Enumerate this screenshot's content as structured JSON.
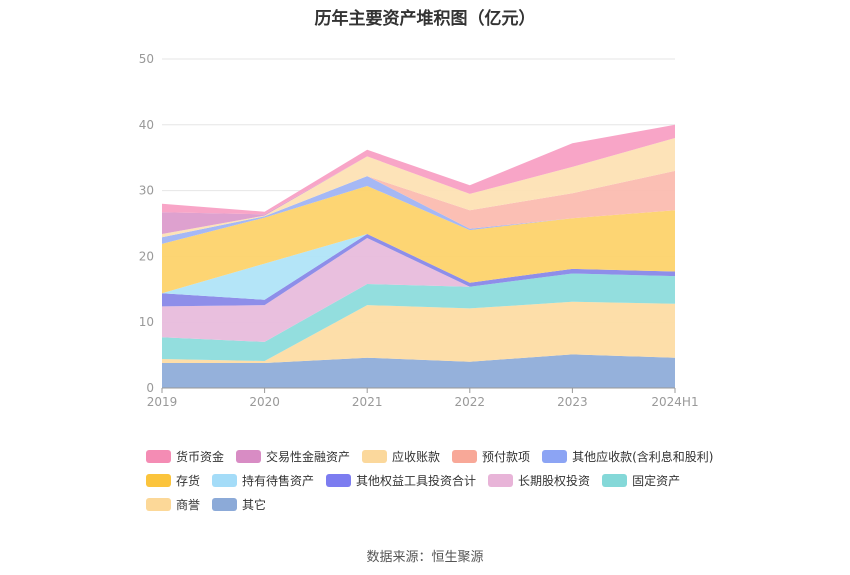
{
  "chart_data": {
    "type": "area",
    "stacked": true,
    "title": "历年主要资产堆积图（亿元）",
    "categories": [
      "2019",
      "2020",
      "2021",
      "2022",
      "2023",
      "2024H1"
    ],
    "ylim": [
      0,
      50
    ],
    "yticks": [
      0,
      10,
      20,
      30,
      40,
      50
    ],
    "grid": true,
    "legend_position": "bottom",
    "series": [
      {
        "name": "其它",
        "color": "#8fadd9",
        "values": [
          3.8,
          3.8,
          4.6,
          4.0,
          5.1,
          4.6
        ]
      },
      {
        "name": "商誉",
        "color": "#fddca4",
        "values": [
          0.6,
          0.3,
          8.0,
          8.1,
          8.0,
          8.2
        ]
      },
      {
        "name": "固定资产",
        "color": "#8ddcdc",
        "values": [
          3.3,
          2.9,
          3.2,
          3.3,
          4.3,
          4.2
        ]
      },
      {
        "name": "长期股权投资",
        "color": "#e8bcdc",
        "values": [
          4.7,
          5.6,
          7.0,
          0.0,
          0.0,
          0.0
        ]
      },
      {
        "name": "其他权益工具投资合计",
        "color": "#8888e8",
        "values": [
          2.0,
          0.8,
          0.6,
          0.6,
          0.7,
          0.7
        ]
      },
      {
        "name": "持有待售资产",
        "color": "#b0e4f8",
        "values": [
          0.0,
          5.5,
          0.0,
          0.0,
          0.0,
          0.0
        ]
      },
      {
        "name": "存货",
        "color": "#fdd36c",
        "values": [
          7.5,
          7.0,
          7.3,
          8.0,
          7.7,
          9.3
        ]
      },
      {
        "name": "其他应收款(含利息和股利)",
        "color": "#a0b4f4",
        "values": [
          1.0,
          0.2,
          1.5,
          0.2,
          0.0,
          0.0
        ]
      },
      {
        "name": "预付款项",
        "color": "#fbbcb0",
        "values": [
          0.0,
          0.0,
          0.0,
          2.8,
          3.8,
          6.0
        ]
      },
      {
        "name": "应收账款",
        "color": "#fde2b4",
        "values": [
          0.5,
          0.1,
          3.0,
          2.5,
          4.0,
          5.0
        ]
      },
      {
        "name": "交易性金融资产",
        "color": "#dc9ccc",
        "values": [
          3.3,
          0.2,
          0.0,
          0.0,
          0.0,
          0.0
        ]
      },
      {
        "name": "货币资金",
        "color": "#f8a0c4",
        "values": [
          1.3,
          0.4,
          1.0,
          1.3,
          3.6,
          2.0
        ]
      }
    ]
  },
  "legend": [
    {
      "name": "货币资金",
      "color": "#f48cb4"
    },
    {
      "name": "交易性金融资产",
      "color": "#d88cc4"
    },
    {
      "name": "应收账款",
      "color": "#fbd89c"
    },
    {
      "name": "预付款项",
      "color": "#f8a898"
    },
    {
      "name": "其他应收款(含利息和股利)",
      "color": "#8ca4f4"
    },
    {
      "name": "存货",
      "color": "#fbc43c"
    },
    {
      "name": "持有待售资产",
      "color": "#a4dcf8"
    },
    {
      "name": "其他权益工具投资合计",
      "color": "#7c7cf0"
    },
    {
      "name": "长期股权投资",
      "color": "#e8b4d8"
    },
    {
      "name": "固定资产",
      "color": "#84d8d8"
    },
    {
      "name": "商誉",
      "color": "#fcd898"
    },
    {
      "name": "其它",
      "color": "#8caad8"
    }
  ],
  "source_text": "数据来源：恒生聚源"
}
